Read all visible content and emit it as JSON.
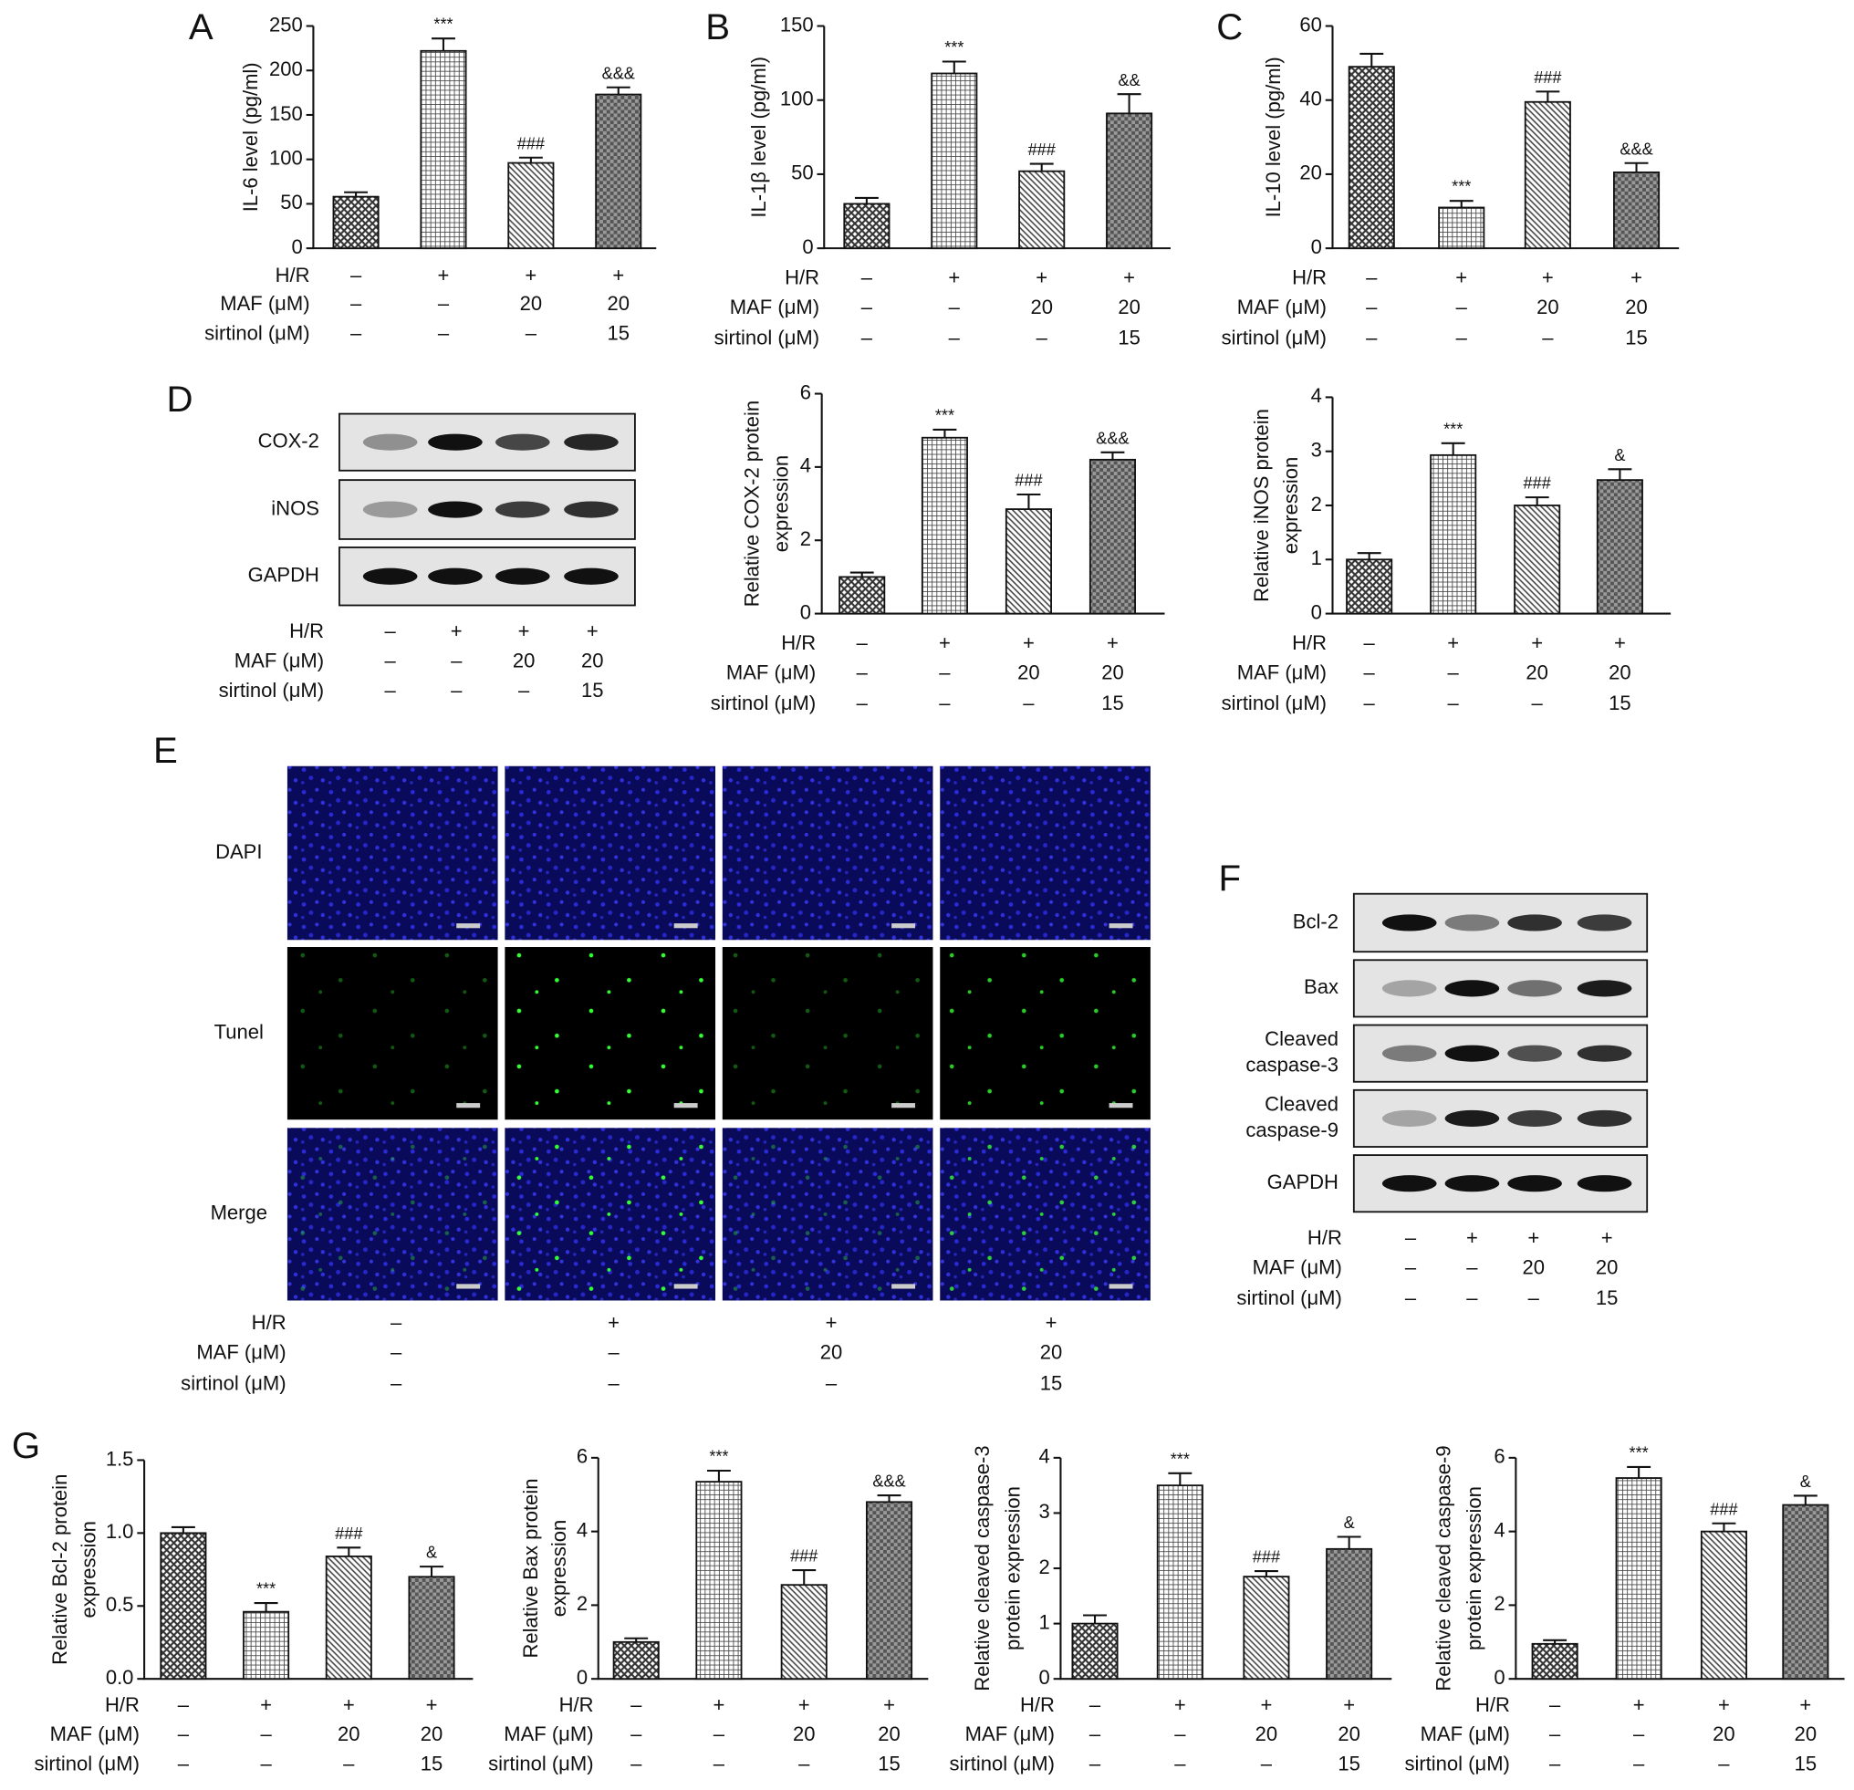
{
  "chart_data": [
    {
      "type": "bar",
      "ylabel": [
        "IL-6 level (pg/ml)"
      ],
      "categories": [
        null,
        null,
        null,
        null
      ],
      "values": [
        58,
        222,
        96,
        173
      ],
      "errors": [
        5,
        14,
        6,
        8
      ],
      "annotations": [
        null,
        "***",
        "###",
        "&&&"
      ],
      "ylim": [
        0,
        250
      ],
      "yticks": [
        0,
        50,
        100,
        150,
        200,
        250
      ]
    },
    {
      "type": "bar",
      "ylabel": [
        "IL-1β level (pg/ml)"
      ],
      "categories": [
        null,
        null,
        null,
        null
      ],
      "values": [
        30,
        118,
        52,
        91
      ],
      "errors": [
        4,
        8,
        5,
        13
      ],
      "annotations": [
        null,
        "***",
        "###",
        "&&"
      ],
      "ylim": [
        0,
        150
      ],
      "yticks": [
        0,
        50,
        100,
        150
      ]
    },
    {
      "type": "bar",
      "ylabel": [
        "IL-10 level (pg/ml)"
      ],
      "categories": [
        null,
        null,
        null,
        null
      ],
      "values": [
        49,
        11,
        39.5,
        20.5
      ],
      "errors": [
        3.5,
        1.8,
        2.8,
        2.5
      ],
      "annotations": [
        null,
        "***",
        "###",
        "&&&"
      ],
      "ylim": [
        0,
        60
      ],
      "yticks": [
        0,
        20,
        40,
        60
      ]
    },
    {
      "type": "bar",
      "ylabel": [
        "Relative COX-2 protein",
        "expression"
      ],
      "categories": [
        null,
        null,
        null,
        null
      ],
      "values": [
        1,
        4.8,
        2.85,
        4.2
      ],
      "errors": [
        0.12,
        0.22,
        0.4,
        0.2
      ],
      "annotations": [
        null,
        "***",
        "###",
        "&&&"
      ],
      "ylim": [
        0,
        6
      ],
      "yticks": [
        0,
        2,
        4,
        6
      ]
    },
    {
      "type": "bar",
      "ylabel": [
        "Relative iNOS protein",
        "expression"
      ],
      "categories": [
        null,
        null,
        null,
        null
      ],
      "values": [
        1,
        2.93,
        2.0,
        2.47
      ],
      "errors": [
        0.12,
        0.22,
        0.15,
        0.2
      ],
      "annotations": [
        null,
        "***",
        "###",
        "&"
      ],
      "ylim": [
        0,
        4
      ],
      "yticks": [
        0,
        1,
        2,
        3,
        4
      ]
    },
    {
      "type": "bar",
      "ylabel": [
        "Relative Bcl-2 protein",
        "expression"
      ],
      "categories": [
        null,
        null,
        null,
        null
      ],
      "values": [
        1.0,
        0.46,
        0.84,
        0.7
      ],
      "errors": [
        0.04,
        0.06,
        0.06,
        0.07
      ],
      "annotations": [
        null,
        "***",
        "###",
        "&"
      ],
      "ylim": [
        0,
        1.5
      ],
      "yticks": [
        {
          "value": 0,
          "label": "0.0"
        },
        0.5,
        {
          "value": 1,
          "label": "1.0"
        },
        1.5
      ]
    },
    {
      "type": "bar",
      "ylabel": [
        "Relative Bax protein",
        "expression"
      ],
      "categories": [
        null,
        null,
        null,
        null
      ],
      "values": [
        1,
        5.35,
        2.55,
        4.8
      ],
      "errors": [
        0.1,
        0.3,
        0.4,
        0.18
      ],
      "annotations": [
        null,
        "***",
        "###",
        "&&&"
      ],
      "ylim": [
        0,
        6
      ],
      "yticks": [
        0,
        2,
        4,
        6
      ]
    },
    {
      "type": "bar",
      "ylabel": [
        "Relative cleaved caspase-3",
        "protein expression"
      ],
      "categories": [
        null,
        null,
        null,
        null
      ],
      "values": [
        1,
        3.5,
        1.85,
        2.35
      ],
      "errors": [
        0.15,
        0.22,
        0.1,
        0.22
      ],
      "annotations": [
        null,
        "***",
        "###",
        "&"
      ],
      "ylim": [
        0,
        4
      ],
      "yticks": [
        0,
        1,
        2,
        3,
        4
      ]
    },
    {
      "type": "bar",
      "ylabel": [
        "Relative cleaved caspase-9",
        "protein expression"
      ],
      "categories": [
        null,
        null,
        null,
        null
      ],
      "values": [
        0.95,
        5.45,
        4.0,
        4.72
      ],
      "errors": [
        0.1,
        0.3,
        0.22,
        0.25
      ],
      "annotations": [
        null,
        "***",
        "###",
        "&"
      ],
      "ylim": [
        0,
        6
      ],
      "yticks": [
        0,
        2,
        4,
        6
      ]
    }
  ],
  "panel_labels": [
    "A",
    "B",
    "C",
    "D",
    "E",
    "F",
    "G"
  ],
  "conditions": {
    "labels": [
      "H/R",
      "MAF (μM)",
      "sirtinol (μM)"
    ],
    "values": [
      [
        "–",
        "+",
        "+",
        "+"
      ],
      [
        "–",
        "–",
        "20",
        "20"
      ],
      [
        "–",
        "–",
        "–",
        "15"
      ]
    ]
  },
  "blots_d": [
    [
      "COX-2"
    ],
    [
      "iNOS"
    ],
    [
      "GAPDH"
    ]
  ],
  "blots_f": [
    [
      "Bcl-2"
    ],
    [
      "Bax"
    ],
    [
      "Cleaved",
      "caspase-3"
    ],
    [
      "Cleaved",
      "caspase-9"
    ],
    [
      "GAPDH"
    ]
  ],
  "imaging_rows": [
    "DAPI",
    "Tunel",
    "Merge"
  ]
}
